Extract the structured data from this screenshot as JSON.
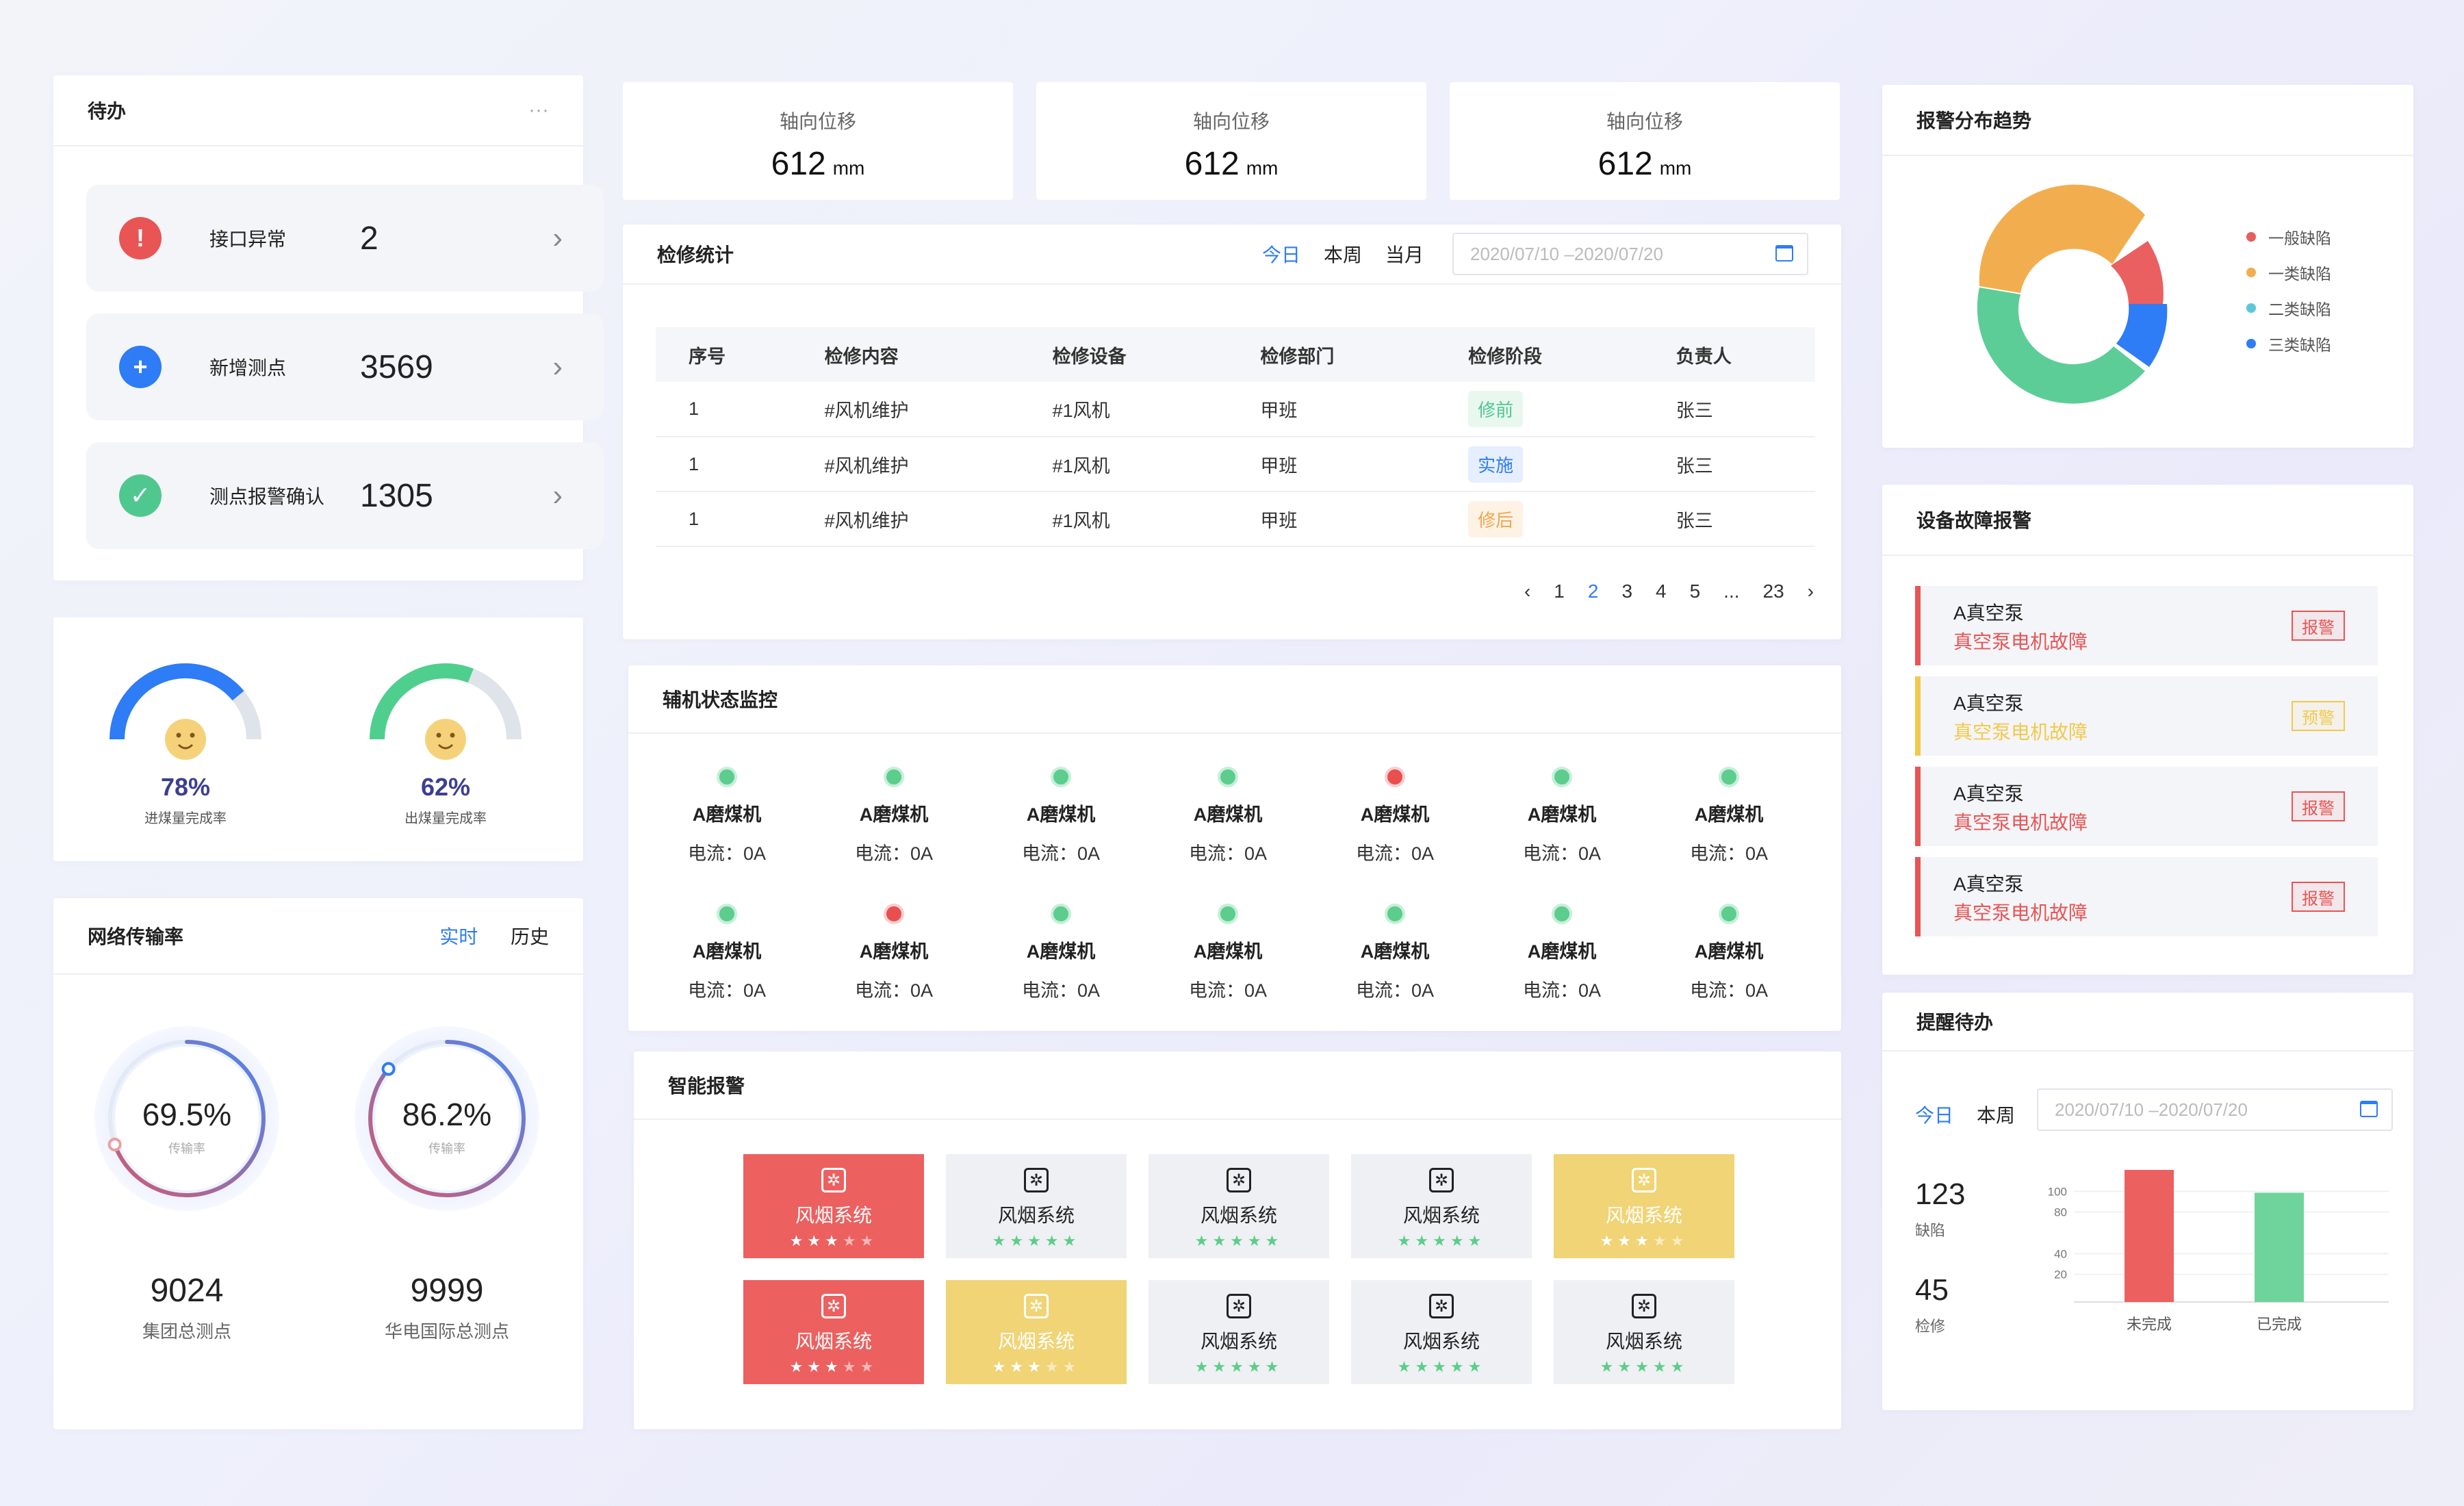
{
  "todo": {
    "title": "待办",
    "more": "···",
    "items": [
      {
        "label": "接口异常",
        "count": "2",
        "icon": "!",
        "color": "#e95454"
      },
      {
        "label": "新增测点",
        "count": "3569",
        "icon": "+",
        "color": "#2e7cf6"
      },
      {
        "label": "测点报警确认",
        "count": "1305",
        "icon": "✓",
        "color": "#4fc88f"
      }
    ]
  },
  "gauges": [
    {
      "value": "78%",
      "label": "进煤量完成率",
      "fraction": 0.78,
      "color": "#2e7cf6"
    },
    {
      "value": "62%",
      "label": "出煤量完成率",
      "fraction": 0.62,
      "color": "#4fcf8e"
    }
  ],
  "network": {
    "title": "网络传输率",
    "tab_active": "实时",
    "tab_other": "历史",
    "rings": [
      {
        "value": "69.5%",
        "sub": "传输率",
        "fraction": 0.695
      },
      {
        "value": "86.2%",
        "sub": "传输率",
        "fraction": 0.862
      }
    ],
    "totals": [
      {
        "value": "9024",
        "label": "集团总测点"
      },
      {
        "value": "9999",
        "label": "华电国际总测点"
      }
    ]
  },
  "stats": [
    {
      "label": "轴向位移",
      "value": "612",
      "unit": "mm"
    },
    {
      "label": "轴向位移",
      "value": "612",
      "unit": "mm"
    },
    {
      "label": "轴向位移",
      "value": "612",
      "unit": "mm"
    }
  ],
  "maint": {
    "title": "检修统计",
    "tabs": [
      "今日",
      "本周",
      "当月"
    ],
    "date_range": "2020/07/10 –2020/07/20",
    "columns": [
      "序号",
      "检修内容",
      "检修设备",
      "检修部门",
      "检修阶段",
      "负责人"
    ],
    "rows": [
      {
        "no": "1",
        "content": "#风机维护",
        "device": "#1风机",
        "dept": "甲班",
        "stage": "修前",
        "owner": "张三"
      },
      {
        "no": "1",
        "content": "#风机维护",
        "device": "#1风机",
        "dept": "甲班",
        "stage": "实施",
        "owner": "张三"
      },
      {
        "no": "1",
        "content": "#风机维护",
        "device": "#1风机",
        "dept": "甲班",
        "stage": "修后",
        "owner": "张三"
      }
    ],
    "pages": [
      "1",
      "2",
      "3",
      "4",
      "5",
      "...",
      "23"
    ],
    "current_page": "2",
    "prev": "‹",
    "next": "›"
  },
  "aux": {
    "title": "辅机状态监控",
    "machines": [
      {
        "name": "A磨煤机",
        "current": "电流：0A",
        "status": "ok"
      },
      {
        "name": "A磨煤机",
        "current": "电流：0A",
        "status": "ok"
      },
      {
        "name": "A磨煤机",
        "current": "电流：0A",
        "status": "ok"
      },
      {
        "name": "A磨煤机",
        "current": "电流：0A",
        "status": "ok"
      },
      {
        "name": "A磨煤机",
        "current": "电流：0A",
        "status": "alarm"
      },
      {
        "name": "A磨煤机",
        "current": "电流：0A",
        "status": "ok"
      },
      {
        "name": "A磨煤机",
        "current": "电流：0A",
        "status": "ok"
      },
      {
        "name": "A磨煤机",
        "current": "电流：0A",
        "status": "ok"
      },
      {
        "name": "A磨煤机",
        "current": "电流：0A",
        "status": "alarm"
      },
      {
        "name": "A磨煤机",
        "current": "电流：0A",
        "status": "ok"
      },
      {
        "name": "A磨煤机",
        "current": "电流：0A",
        "status": "ok"
      },
      {
        "name": "A磨煤机",
        "current": "电流：0A",
        "status": "ok"
      },
      {
        "name": "A磨煤机",
        "current": "电流：0A",
        "status": "ok"
      },
      {
        "name": "A磨煤机",
        "current": "电流：0A",
        "status": "ok"
      }
    ]
  },
  "smart": {
    "title": "智能报警",
    "tiles": [
      {
        "label": "风烟系统",
        "level": "red",
        "stars": 3
      },
      {
        "label": "风烟系统",
        "level": "gray",
        "stars": 5
      },
      {
        "label": "风烟系统",
        "level": "gray",
        "stars": 5
      },
      {
        "label": "风烟系统",
        "level": "gray",
        "stars": 5
      },
      {
        "label": "风烟系统",
        "level": "yellow",
        "stars": 3
      },
      {
        "label": "风烟系统",
        "level": "red",
        "stars": 3
      },
      {
        "label": "风烟系统",
        "level": "yellow",
        "stars": 3
      },
      {
        "label": "风烟系统",
        "level": "gray",
        "stars": 5
      },
      {
        "label": "风烟系统",
        "level": "gray",
        "stars": 5
      },
      {
        "label": "风烟系统",
        "level": "gray",
        "stars": 5
      }
    ]
  },
  "alarm_trend": {
    "title": "报警分布趋势",
    "legend": [
      {
        "label": "一般缺陷",
        "color": "#e95d5d"
      },
      {
        "label": "一类缺陷",
        "color": "#f2ae4e"
      },
      {
        "label": "二类缺陷",
        "color": "#5bc8d8"
      },
      {
        "label": "三类缺陷",
        "color": "#2e7cf6"
      }
    ]
  },
  "fault": {
    "title": "设备故障报警",
    "items": [
      {
        "device": "A真空泵",
        "desc": "真空泵电机故障",
        "badge": "报警",
        "color": "#e95454"
      },
      {
        "device": "A真空泵",
        "desc": "真空泵电机故障",
        "badge": "预警",
        "color": "#f2c94c"
      },
      {
        "device": "A真空泵",
        "desc": "真空泵电机故障",
        "badge": "报警",
        "color": "#e95454"
      },
      {
        "device": "A真空泵",
        "desc": "真空泵电机故障",
        "badge": "报警",
        "color": "#e95454"
      }
    ]
  },
  "remind": {
    "title": "提醒待办",
    "tabs": [
      "今日",
      "本周"
    ],
    "date_range": "2020/07/10 –2020/07/20",
    "kpis": [
      {
        "value": "123",
        "label": "缺陷"
      },
      {
        "value": "45",
        "label": "检修"
      }
    ]
  },
  "chart_data": {
    "type": "bar",
    "categories": [
      "未完成",
      "已完成"
    ],
    "values": [
      118,
      96
    ],
    "colors": [
      "#ec605f",
      "#6fd49b"
    ],
    "yticks": [
      "100",
      "80",
      "40",
      "20"
    ],
    "ylim": [
      0,
      120
    ]
  }
}
